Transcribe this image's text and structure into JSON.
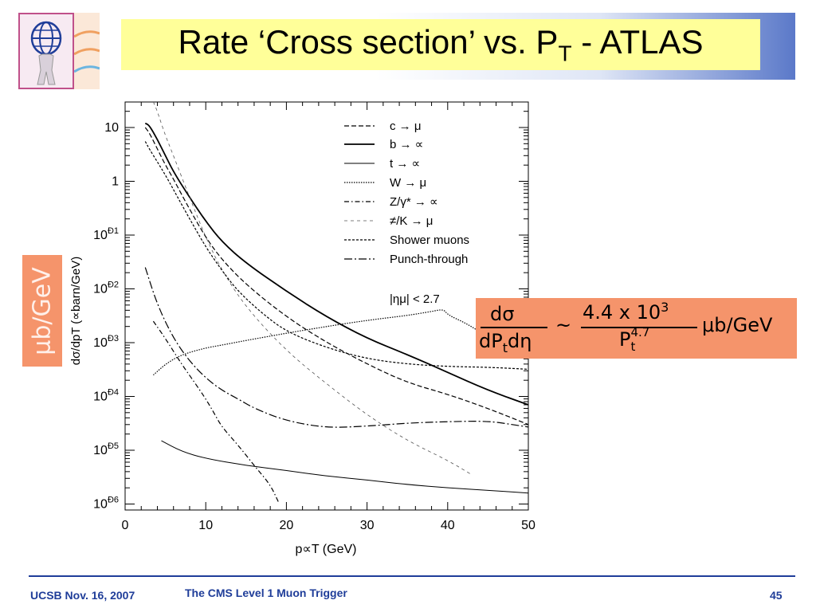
{
  "slide": {
    "title_main": "Rate ‘Cross section’ vs. P",
    "title_sub": "T",
    "title_tail": " - ATLAS",
    "side_label": "μb/GeV",
    "footer_left": "UCSB Nov. 16, 2007",
    "footer_center": "The CMS Level 1 Muon Trigger",
    "footer_right": "45"
  },
  "formula": {
    "numerator_left": "dσ",
    "denominator_left": "dP",
    "denominator_left_sub": "t",
    "denominator_left_tail": "dη",
    "approx": "~",
    "numerator_right": "4.4 x 10",
    "numerator_right_sup": "3",
    "denominator_right": "P",
    "denominator_right_sup": "4.7",
    "denominator_right_sub": "t",
    "unit": "μb/GeV"
  },
  "colors": {
    "title_bg": "#ffff99",
    "accent_orange": "#f5946b",
    "footer_blue": "#1f3d99"
  },
  "chart_data": {
    "type": "line",
    "ylabel": "dσ/dpT (∝barn/GeV)",
    "xlabel": "p∝T (GeV)",
    "x_scale": "linear",
    "y_scale": "log",
    "xlim": [
      0,
      50
    ],
    "ylim": [
      1e-06,
      30
    ],
    "x_ticks": [
      "0",
      "10",
      "20",
      "30",
      "40",
      "50"
    ],
    "y_ticks": [
      "10",
      "1",
      "10Ð1",
      "10Ð2",
      "10Ð3",
      "10Ð4",
      "10Ð5",
      "10Ð6"
    ],
    "legend_position": "top-right",
    "annotation": "|ημ| < 2.7",
    "series": [
      {
        "name": "c →  μ",
        "style": "dashed",
        "points": [
          [
            2.5,
            10
          ],
          [
            3,
            8
          ],
          [
            4,
            4
          ],
          [
            5,
            2
          ],
          [
            6,
            1.1
          ],
          [
            8,
            0.3
          ],
          [
            10,
            0.09
          ],
          [
            12,
            0.035
          ],
          [
            15,
            0.012
          ],
          [
            20,
            0.003
          ],
          [
            25,
            0.001
          ],
          [
            30,
            0.0004
          ],
          [
            35,
            0.00018
          ],
          [
            40,
            0.00011
          ],
          [
            45,
            6e-05
          ],
          [
            50,
            3e-05
          ]
        ]
      },
      {
        "name": "b → ∝",
        "style": "solid-thick",
        "points": [
          [
            2.5,
            12
          ],
          [
            3,
            11
          ],
          [
            4,
            6
          ],
          [
            5,
            3
          ],
          [
            6,
            1.5
          ],
          [
            8,
            0.5
          ],
          [
            10,
            0.18
          ],
          [
            12,
            0.075
          ],
          [
            15,
            0.03
          ],
          [
            20,
            0.009
          ],
          [
            25,
            0.003
          ],
          [
            30,
            0.0012
          ],
          [
            35,
            0.0006
          ],
          [
            40,
            0.00028
          ],
          [
            45,
            0.00013
          ],
          [
            50,
            7e-05
          ]
        ]
      },
      {
        "name": "t → ∝",
        "style": "solid-thin",
        "points": [
          [
            4.5,
            1.5e-05
          ],
          [
            7,
            9.5e-06
          ],
          [
            10,
            7e-06
          ],
          [
            15,
            5.2e-06
          ],
          [
            20,
            4.2e-06
          ],
          [
            25,
            3.3e-06
          ],
          [
            30,
            2.8e-06
          ],
          [
            35,
            2.3e-06
          ],
          [
            40,
            2e-06
          ],
          [
            45,
            1.8e-06
          ],
          [
            50,
            1.6e-06
          ]
        ]
      },
      {
        "name": "W →  μ",
        "style": "dotted",
        "points": [
          [
            3.5,
            0.00025
          ],
          [
            5,
            0.0004
          ],
          [
            7,
            0.0006
          ],
          [
            10,
            0.0008
          ],
          [
            12,
            0.0009
          ],
          [
            15,
            0.0011
          ],
          [
            20,
            0.0015
          ],
          [
            25,
            0.002
          ],
          [
            30,
            0.0026
          ],
          [
            35,
            0.0032
          ],
          [
            38,
            0.0038
          ],
          [
            39.5,
            0.0042
          ],
          [
            40,
            0.0033
          ],
          [
            42,
            0.0024
          ],
          [
            44,
            0.0016
          ],
          [
            46,
            0.0009
          ],
          [
            48,
            0.0006
          ],
          [
            50,
            0.00055
          ]
        ]
      },
      {
        "name": "Z/γ* → ∝",
        "style": "dash-dot",
        "points": [
          [
            3.5,
            0.0025
          ],
          [
            5,
            0.0012
          ],
          [
            7,
            0.0004
          ],
          [
            9,
            0.00015
          ],
          [
            10,
            9e-05
          ],
          [
            11,
            5e-05
          ],
          [
            12,
            2.7e-05
          ],
          [
            14,
            1.25e-05
          ],
          [
            16,
            5.2e-06
          ],
          [
            18,
            2.3e-06
          ],
          [
            19,
            1.1e-06
          ]
        ]
      },
      {
        "name": "≠/K →  μ",
        "style": "dashed-light",
        "points": [
          [
            3.5,
            30
          ],
          [
            4,
            20
          ],
          [
            5,
            7
          ],
          [
            6,
            3
          ],
          [
            8,
            0.5
          ],
          [
            10,
            0.09
          ],
          [
            12,
            0.022
          ],
          [
            15,
            0.0045
          ],
          [
            20,
            0.0007
          ],
          [
            25,
            0.00017
          ],
          [
            30,
            4.5e-05
          ],
          [
            35,
            1.5e-05
          ],
          [
            40,
            6.5e-06
          ],
          [
            43,
            3.5e-06
          ]
        ]
      },
      {
        "name": "Shower muons",
        "style": "short-dash",
        "points": [
          [
            2.5,
            5.5
          ],
          [
            3,
            4
          ],
          [
            4,
            2.3
          ],
          [
            5,
            1.3
          ],
          [
            6,
            0.7
          ],
          [
            8,
            0.2
          ],
          [
            10,
            0.06
          ],
          [
            12,
            0.022
          ],
          [
            14,
            0.009
          ],
          [
            17,
            0.0035
          ],
          [
            20,
            0.0016
          ],
          [
            25,
            0.0008
          ],
          [
            30,
            0.0005
          ],
          [
            35,
            0.0004
          ],
          [
            40,
            0.00036
          ],
          [
            45,
            0.00035
          ],
          [
            50,
            0.00032
          ]
        ]
      },
      {
        "name": "Punch-through",
        "style": "long-dash-dot",
        "points": [
          [
            2.5,
            0.025
          ],
          [
            4,
            0.005
          ],
          [
            6,
            0.0012
          ],
          [
            8,
            0.00045
          ],
          [
            10,
            0.00022
          ],
          [
            12,
            0.00013
          ],
          [
            14,
            9e-05
          ],
          [
            16,
            6e-05
          ],
          [
            20,
            3.5e-05
          ],
          [
            25,
            2.6e-05
          ],
          [
            30,
            2.8e-05
          ],
          [
            35,
            3.2e-05
          ],
          [
            40,
            3.4e-05
          ],
          [
            45,
            3.5e-05
          ],
          [
            48,
            3e-05
          ],
          [
            50,
            2.7e-05
          ]
        ]
      }
    ]
  }
}
